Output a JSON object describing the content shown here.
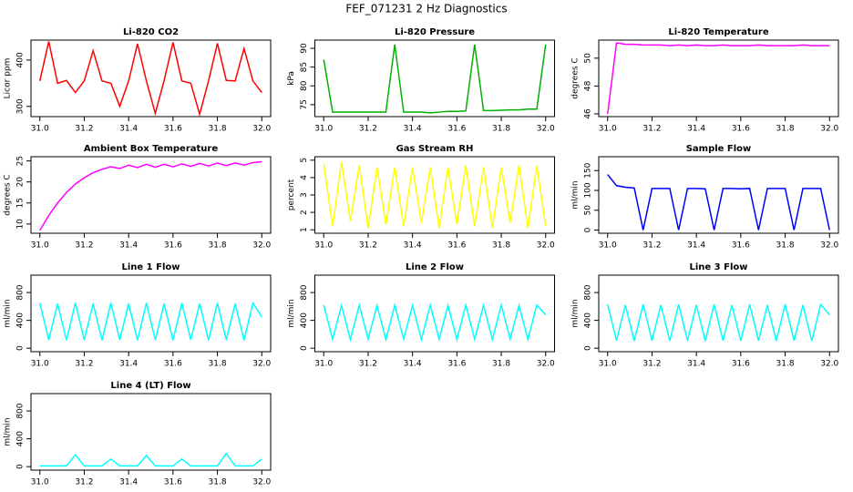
{
  "title": "FEF_071231  2 Hz Diagnostics",
  "chart_data": [
    {
      "type": "line",
      "title": "Li-820 CO2",
      "ylabel": "Licor ppm",
      "x": [
        31.0,
        31.04,
        31.08,
        31.12,
        31.16,
        31.2,
        31.24,
        31.28,
        31.32,
        31.36,
        31.4,
        31.44,
        31.48,
        31.52,
        31.56,
        31.6,
        31.64,
        31.68,
        31.72,
        31.76,
        31.8,
        31.84,
        31.88,
        31.92,
        31.96,
        32.0
      ],
      "series": [
        {
          "color": "#ff0000",
          "values": [
            355,
            440,
            350,
            356,
            330,
            355,
            420,
            355,
            350,
            300,
            355,
            435,
            355,
            285,
            356,
            438,
            355,
            350,
            283,
            355,
            436,
            356,
            355,
            425,
            355,
            330
          ]
        }
      ],
      "xlim": [
        30.96,
        32.04
      ],
      "xticks": [
        {
          "value": 31,
          "label": "31.0"
        },
        31.2,
        31.4,
        31.6,
        31.8,
        {
          "value": 32,
          "label": "32.0"
        }
      ],
      "ylim": [
        278,
        443
      ],
      "yticks": [
        300,
        400
      ]
    },
    {
      "type": "line",
      "title": "Li-820 Pressure",
      "ylabel": "kPa",
      "x": [
        31.0,
        31.04,
        31.08,
        31.12,
        31.16,
        31.2,
        31.24,
        31.28,
        31.32,
        31.36,
        31.4,
        31.44,
        31.48,
        31.52,
        31.56,
        31.6,
        31.64,
        31.68,
        31.72,
        31.76,
        31.8,
        31.84,
        31.88,
        31.92,
        31.96,
        32.0
      ],
      "series": [
        {
          "color": "#00b000",
          "values": [
            87,
            73,
            73,
            73,
            73,
            73,
            73,
            73,
            91,
            73,
            73,
            73,
            72.8,
            73,
            73.2,
            73.2,
            73.3,
            91,
            73.4,
            73.4,
            73.5,
            73.6,
            73.6,
            73.8,
            73.8,
            91
          ]
        }
      ],
      "xlim": [
        30.96,
        32.04
      ],
      "xticks": [
        {
          "value": 31,
          "label": "31.0"
        },
        31.2,
        31.4,
        31.6,
        31.8,
        {
          "value": 32,
          "label": "32.0"
        }
      ],
      "ylim": [
        71.8,
        92.2
      ],
      "yticks": [
        75,
        80,
        85,
        90
      ]
    },
    {
      "type": "line",
      "title": "Li-820 Temperature",
      "ylabel": "degrees C",
      "x": [
        31.0,
        31.04,
        31.08,
        31.12,
        31.16,
        31.2,
        31.24,
        31.28,
        31.32,
        31.36,
        31.4,
        31.44,
        31.48,
        31.52,
        31.56,
        31.6,
        31.64,
        31.68,
        31.72,
        31.76,
        31.8,
        31.84,
        31.88,
        31.92,
        31.96,
        32.0
      ],
      "series": [
        {
          "color": "#ff00ff",
          "values": [
            46,
            51.1,
            51.0,
            51.0,
            50.95,
            50.95,
            50.95,
            50.9,
            50.95,
            50.9,
            50.95,
            50.9,
            50.9,
            50.95,
            50.9,
            50.9,
            50.9,
            50.95,
            50.9,
            50.9,
            50.9,
            50.9,
            50.95,
            50.9,
            50.9,
            50.9
          ]
        }
      ],
      "xlim": [
        30.96,
        32.04
      ],
      "xticks": [
        {
          "value": 31,
          "label": "31.0"
        },
        31.2,
        31.4,
        31.6,
        31.8,
        {
          "value": 32,
          "label": "32.0"
        }
      ],
      "ylim": [
        45.8,
        51.3
      ],
      "yticks": [
        46,
        48,
        50
      ]
    },
    {
      "type": "line",
      "title": "Ambient Box Temperature",
      "ylabel": "degrees C",
      "x": [
        31.0,
        31.04,
        31.08,
        31.12,
        31.16,
        31.2,
        31.24,
        31.28,
        31.32,
        31.36,
        31.4,
        31.44,
        31.48,
        31.52,
        31.56,
        31.6,
        31.64,
        31.68,
        31.72,
        31.76,
        31.8,
        31.84,
        31.88,
        31.92,
        31.96,
        32.0
      ],
      "series": [
        {
          "color": "#ff00ff",
          "values": [
            8.5,
            12,
            15,
            17.5,
            19.5,
            21,
            22.2,
            23,
            23.6,
            23.2,
            24,
            23.4,
            24.2,
            23.5,
            24.2,
            23.6,
            24.3,
            23.7,
            24.4,
            23.8,
            24.5,
            23.9,
            24.5,
            24,
            24.6,
            24.8
          ]
        }
      ],
      "xlim": [
        30.96,
        32.04
      ],
      "xticks": [
        {
          "value": 31,
          "label": "31.0"
        },
        31.2,
        31.4,
        31.6,
        31.8,
        {
          "value": 32,
          "label": "32.0"
        }
      ],
      "ylim": [
        7.8,
        26
      ],
      "yticks": [
        10,
        15,
        20,
        25
      ]
    },
    {
      "type": "line",
      "title": "Gas Stream RH",
      "ylabel": "percent",
      "x": [
        31.0,
        31.04,
        31.08,
        31.12,
        31.16,
        31.2,
        31.24,
        31.28,
        31.32,
        31.36,
        31.4,
        31.44,
        31.48,
        31.52,
        31.56,
        31.6,
        31.64,
        31.68,
        31.72,
        31.76,
        31.8,
        31.84,
        31.88,
        31.92,
        31.96,
        32.0
      ],
      "series": [
        {
          "color": "#ffff00",
          "values": [
            4.8,
            1.2,
            4.9,
            1.5,
            4.7,
            1.1,
            4.6,
            1.3,
            4.6,
            1.2,
            4.6,
            1.4,
            4.6,
            1.1,
            4.6,
            1.3,
            4.7,
            1.2,
            4.6,
            1.1,
            4.6,
            1.4,
            4.7,
            1.1,
            4.7,
            1.2
          ]
        }
      ],
      "xlim": [
        30.96,
        32.04
      ],
      "xticks": [
        {
          "value": 31,
          "label": "31.0"
        },
        31.2,
        31.4,
        31.6,
        31.8,
        {
          "value": 32,
          "label": "32.0"
        }
      ],
      "ylim": [
        0.8,
        5.2
      ],
      "yticks": [
        1,
        2,
        3,
        4,
        5
      ]
    },
    {
      "type": "line",
      "title": "Sample Flow",
      "ylabel": "ml/min",
      "x": [
        31.0,
        31.04,
        31.08,
        31.12,
        31.16,
        31.2,
        31.24,
        31.28,
        31.32,
        31.36,
        31.4,
        31.44,
        31.48,
        31.52,
        31.56,
        31.6,
        31.64,
        31.68,
        31.72,
        31.76,
        31.8,
        31.84,
        31.88,
        31.92,
        31.96,
        32.0
      ],
      "series": [
        {
          "color": "#0000ff",
          "values": [
            140,
            112,
            108,
            106,
            0,
            105,
            105,
            105,
            0,
            105,
            105,
            104,
            0,
            105,
            105,
            104,
            105,
            0,
            105,
            105,
            105,
            0,
            105,
            105,
            105,
            0
          ]
        }
      ],
      "xlim": [
        30.96,
        32.04
      ],
      "xticks": [
        {
          "value": 31,
          "label": "31.0"
        },
        31.2,
        31.4,
        31.6,
        31.8,
        {
          "value": 32,
          "label": "32.0"
        }
      ],
      "ylim": [
        -8,
        185
      ],
      "yticks": [
        0,
        50,
        100,
        150
      ]
    },
    {
      "type": "line",
      "title": "Line 1 Flow",
      "ylabel": "ml/min",
      "x": [
        31.0,
        31.04,
        31.08,
        31.12,
        31.16,
        31.2,
        31.24,
        31.28,
        31.32,
        31.36,
        31.4,
        31.44,
        31.48,
        31.52,
        31.56,
        31.6,
        31.64,
        31.68,
        31.72,
        31.76,
        31.8,
        31.84,
        31.88,
        31.92,
        31.96,
        32.0
      ],
      "series": [
        {
          "color": "#00ffff",
          "values": [
            650,
            120,
            640,
            115,
            650,
            120,
            640,
            115,
            650,
            120,
            640,
            115,
            650,
            120,
            640,
            115,
            650,
            120,
            640,
            115,
            650,
            120,
            640,
            115,
            650,
            450
          ]
        }
      ],
      "xlim": [
        30.96,
        32.04
      ],
      "xticks": [
        {
          "value": 31,
          "label": "31.0"
        },
        31.2,
        31.4,
        31.6,
        31.8,
        {
          "value": 32,
          "label": "32.0"
        }
      ],
      "ylim": [
        -50,
        1050
      ],
      "yticks": [
        0,
        400,
        800
      ]
    },
    {
      "type": "line",
      "title": "Line 2 Flow",
      "ylabel": "ml/min",
      "x": [
        31.0,
        31.04,
        31.08,
        31.12,
        31.16,
        31.2,
        31.24,
        31.28,
        31.32,
        31.36,
        31.4,
        31.44,
        31.48,
        31.52,
        31.56,
        31.6,
        31.64,
        31.68,
        31.72,
        31.76,
        31.8,
        31.84,
        31.88,
        31.92,
        31.96,
        32.0
      ],
      "series": [
        {
          "color": "#00ffff",
          "values": [
            620,
            130,
            615,
            125,
            620,
            130,
            615,
            125,
            620,
            130,
            615,
            125,
            620,
            130,
            615,
            125,
            620,
            130,
            615,
            125,
            620,
            130,
            615,
            125,
            620,
            480
          ]
        }
      ],
      "xlim": [
        30.96,
        32.04
      ],
      "xticks": [
        {
          "value": 31,
          "label": "31.0"
        },
        31.2,
        31.4,
        31.6,
        31.8,
        {
          "value": 32,
          "label": "32.0"
        }
      ],
      "ylim": [
        -50,
        1050
      ],
      "yticks": [
        0,
        400,
        800
      ]
    },
    {
      "type": "line",
      "title": "Line 3 Flow",
      "ylabel": "ml/min",
      "x": [
        31.0,
        31.04,
        31.08,
        31.12,
        31.16,
        31.2,
        31.24,
        31.28,
        31.32,
        31.36,
        31.4,
        31.44,
        31.48,
        31.52,
        31.56,
        31.6,
        31.64,
        31.68,
        31.72,
        31.76,
        31.8,
        31.84,
        31.88,
        31.92,
        31.96,
        32.0
      ],
      "series": [
        {
          "color": "#00ffff",
          "values": [
            630,
            110,
            620,
            105,
            630,
            110,
            620,
            105,
            630,
            110,
            620,
            105,
            630,
            110,
            620,
            105,
            630,
            110,
            620,
            105,
            630,
            110,
            620,
            105,
            630,
            480
          ]
        }
      ],
      "xlim": [
        30.96,
        32.04
      ],
      "xticks": [
        {
          "value": 31,
          "label": "31.0"
        },
        31.2,
        31.4,
        31.6,
        31.8,
        {
          "value": 32,
          "label": "32.0"
        }
      ],
      "ylim": [
        -50,
        1050
      ],
      "yticks": [
        0,
        400,
        800
      ]
    },
    {
      "type": "line",
      "title": "Line 4 (LT) Flow",
      "ylabel": "ml/min",
      "x": [
        31.0,
        31.04,
        31.08,
        31.12,
        31.16,
        31.2,
        31.24,
        31.28,
        31.32,
        31.36,
        31.4,
        31.44,
        31.48,
        31.52,
        31.56,
        31.6,
        31.64,
        31.68,
        31.72,
        31.76,
        31.8,
        31.84,
        31.88,
        31.92,
        31.96,
        32.0
      ],
      "series": [
        {
          "color": "#00ffff",
          "values": [
            10,
            10,
            10,
            10,
            170,
            10,
            10,
            10,
            110,
            10,
            10,
            10,
            160,
            10,
            10,
            10,
            110,
            10,
            10,
            10,
            10,
            190,
            10,
            10,
            10,
            110
          ]
        }
      ],
      "xlim": [
        30.96,
        32.04
      ],
      "xticks": [
        {
          "value": 31,
          "label": "31.0"
        },
        31.2,
        31.4,
        31.6,
        31.8,
        {
          "value": 32,
          "label": "32.0"
        }
      ],
      "ylim": [
        -50,
        1050
      ],
      "yticks": [
        0,
        400,
        800
      ]
    }
  ]
}
